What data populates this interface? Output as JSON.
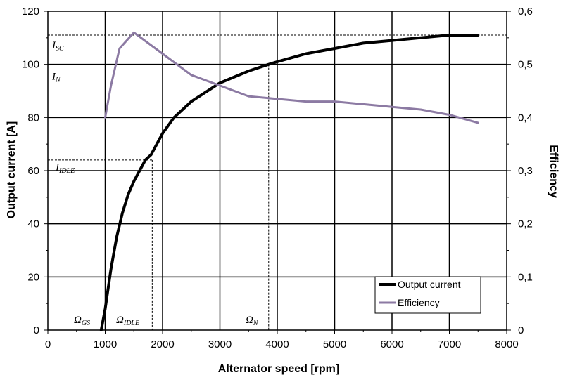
{
  "chart_data": {
    "type": "line",
    "xlabel": "Alternator speed [rpm]",
    "ylabel": "Output current [A]",
    "y2label": "Efficiency",
    "xlim": [
      0,
      8000
    ],
    "ylim": [
      0,
      120
    ],
    "y2lim": [
      0,
      0.6
    ],
    "xticks": [
      "0",
      "1000",
      "2000",
      "3000",
      "4000",
      "5000",
      "6000",
      "7000",
      "8000"
    ],
    "yticks": [
      "0",
      "20",
      "40",
      "60",
      "80",
      "100",
      "120"
    ],
    "y2ticks": [
      "0",
      "0,1",
      "0,2",
      "0,3",
      "0,4",
      "0,5",
      "0,6"
    ],
    "grid": true,
    "legend_position": "bottom-right",
    "series": [
      {
        "name": "Output current",
        "axis": "left",
        "color": "#000000",
        "x": [
          930,
          1000,
          1100,
          1200,
          1300,
          1400,
          1500,
          1600,
          1700,
          1800,
          2000,
          2200,
          2500,
          3000,
          3500,
          3850,
          4000,
          4500,
          5000,
          5500,
          6000,
          6500,
          7000,
          7500
        ],
        "y": [
          0,
          8,
          23,
          35,
          44,
          51,
          56,
          60,
          64,
          66,
          74,
          80,
          86,
          93,
          97.5,
          100,
          101,
          104,
          106,
          108,
          109,
          110,
          111,
          111
        ]
      },
      {
        "name": "Efficiency",
        "axis": "right",
        "color": "#8c7aa3",
        "x": [
          1000,
          1100,
          1250,
          1500,
          2000,
          2500,
          3000,
          3500,
          4000,
          4500,
          5000,
          5500,
          6000,
          6500,
          7000,
          7500
        ],
        "y": [
          0.4,
          0.46,
          0.53,
          0.56,
          0.52,
          0.48,
          0.46,
          0.44,
          0.435,
          0.43,
          0.43,
          0.425,
          0.42,
          0.415,
          0.405,
          0.39
        ]
      }
    ],
    "annotations": {
      "i_sc": {
        "main": "I",
        "sub": "SC",
        "y": 111
      },
      "i_n": {
        "main": "I",
        "sub": "N",
        "y": 100
      },
      "i_idle": {
        "main": "I",
        "sub": "IDLE",
        "y": 64
      },
      "omega_gs": {
        "main": "Ω",
        "sub": "GS",
        "x": 930
      },
      "omega_idle": {
        "main": "Ω",
        "sub": "IDLE",
        "x": 1820
      },
      "omega_n": {
        "main": "Ω",
        "sub": "N",
        "x": 3850
      }
    }
  }
}
